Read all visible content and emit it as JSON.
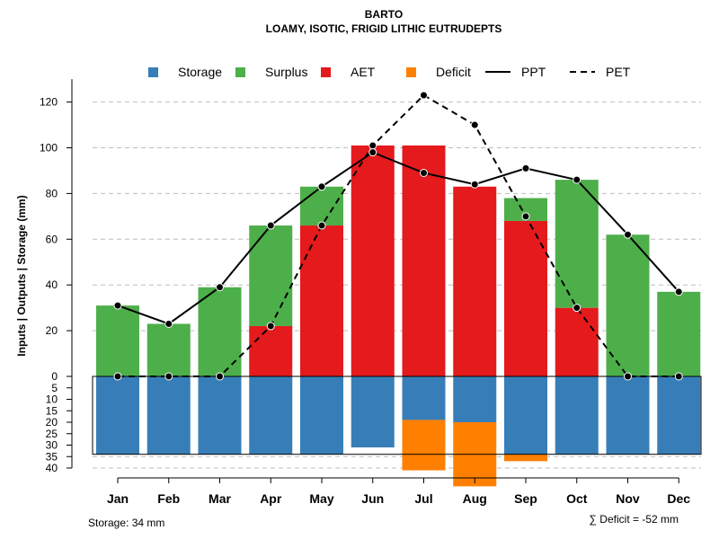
{
  "chart_data": {
    "type": "bar",
    "title": "BARTO",
    "subtitle": "LOAMY, ISOTIC, FRIGID LITHIC EUTRUDEPTS",
    "ylabel": "Inputs | Outputs | Storage    (mm)",
    "categories": [
      "Jan",
      "Feb",
      "Mar",
      "Apr",
      "May",
      "Jun",
      "Jul",
      "Aug",
      "Sep",
      "Oct",
      "Nov",
      "Dec"
    ],
    "upper_axis": {
      "range": [
        0,
        130
      ],
      "ticks": [
        0,
        20,
        40,
        60,
        80,
        100,
        120
      ]
    },
    "lower_axis": {
      "range": [
        0,
        40
      ],
      "ticks": [
        0,
        5,
        10,
        15,
        20,
        25,
        30,
        35,
        40
      ]
    },
    "series": [
      {
        "name": "Storage",
        "color": "#377EB8",
        "part": "lower",
        "values": [
          34,
          34,
          34,
          34,
          34,
          31,
          19,
          20,
          34,
          34,
          34,
          34
        ]
      },
      {
        "name": "Deficit",
        "color": "#FF7F00",
        "part": "lower_stacked",
        "values": [
          0,
          0,
          0,
          0,
          0,
          0,
          22,
          28,
          3,
          0,
          0,
          0
        ]
      },
      {
        "name": "AET",
        "color": "#E41A1C",
        "part": "upper",
        "values": [
          0,
          0,
          0,
          22,
          66,
          101,
          101,
          83,
          68,
          30,
          0,
          0
        ]
      },
      {
        "name": "Surplus",
        "color": "#4DAF4A",
        "part": "upper_stacked",
        "values": [
          31,
          23,
          39,
          44,
          17,
          0,
          0,
          0,
          10,
          56,
          62,
          37
        ]
      },
      {
        "name": "PPT",
        "color": "#000000",
        "style": "solid",
        "values": [
          31,
          23,
          39,
          66,
          83,
          98,
          89,
          84,
          91,
          86,
          62,
          37
        ]
      },
      {
        "name": "PET",
        "color": "#000000",
        "style": "dashed",
        "values": [
          0,
          0,
          0,
          22,
          66,
          101,
          123,
          110,
          70,
          30,
          0,
          0
        ]
      }
    ],
    "legend": [
      "Storage",
      "Surplus",
      "AET",
      "Deficit",
      "PPT",
      "PET"
    ],
    "legend_position": "top",
    "grid": true,
    "storage_note": "Storage: 34 mm",
    "deficit_note": "∑ Deficit = -52 mm"
  }
}
